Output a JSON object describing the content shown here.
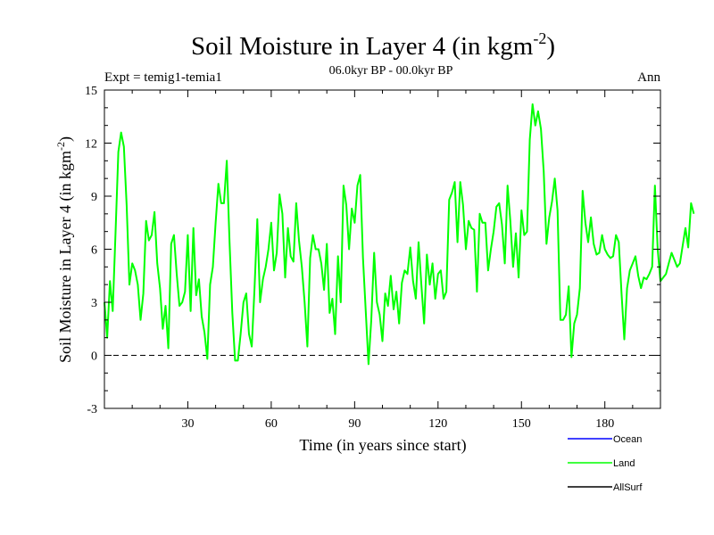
{
  "chart_data": {
    "type": "line",
    "title": "Soil Moisture in Layer 4 (in kgm",
    "title_sup": "-2",
    "title_close": ")",
    "subtitle": "06.0kyr BP - 00.0kyr BP",
    "expt_label": "Expt = temig1-temia1",
    "season_label": "Ann",
    "xlabel": "Time (in years since start)",
    "ylabel": "Soil Moisture in Layer 4 (in kgm",
    "ylabel_sup": "-2",
    "ylabel_close": ")",
    "xlim": [
      0,
      200
    ],
    "ylim": [
      -3,
      15
    ],
    "x_ticks": [
      30,
      60,
      90,
      120,
      150,
      180
    ],
    "y_ticks": [
      -3,
      0,
      3,
      6,
      9,
      12,
      15
    ],
    "reference_line": 0,
    "legend": [
      {
        "name": "Ocean",
        "color": "#0000ff"
      },
      {
        "name": "Land",
        "color": "#00ff00"
      },
      {
        "name": "AllSurf",
        "color": "#000000"
      }
    ],
    "series": [
      {
        "name": "Land",
        "color": "#00ff00",
        "x_start": 0,
        "x_step": 1,
        "values": [
          3.0,
          1.0,
          4.2,
          2.5,
          7.0,
          11.5,
          12.6,
          11.8,
          8.5,
          4.0,
          5.2,
          4.8,
          4.0,
          2.0,
          3.5,
          7.6,
          6.5,
          6.8,
          8.1,
          5.2,
          3.8,
          1.5,
          2.8,
          0.4,
          6.3,
          6.8,
          4.6,
          2.8,
          3.0,
          3.6,
          6.8,
          2.5,
          7.2,
          3.4,
          4.3,
          2.2,
          1.3,
          -0.2,
          4.0,
          5.0,
          7.5,
          9.7,
          8.6,
          8.6,
          11.0,
          6.4,
          2.4,
          -0.3,
          -0.3,
          1.2,
          3.0,
          3.5,
          1.2,
          0.5,
          3.8,
          7.7,
          3.0,
          4.3,
          5.0,
          6.0,
          7.5,
          4.8,
          5.8,
          9.1,
          8.0,
          4.4,
          7.2,
          5.6,
          5.3,
          8.6,
          6.5,
          5.0,
          3.0,
          0.5,
          5.5,
          6.8,
          6.0,
          6.0,
          5.2,
          3.7,
          6.3,
          2.4,
          3.2,
          1.2,
          5.6,
          3.0,
          9.6,
          8.5,
          6.0,
          8.3,
          7.5,
          9.6,
          10.2,
          5.5,
          2.5,
          -0.5,
          2.0,
          5.8,
          3.0,
          2.3,
          0.8,
          3.5,
          2.8,
          4.5,
          2.6,
          3.6,
          1.8,
          4.1,
          4.8,
          4.6,
          6.1,
          4.2,
          3.2,
          6.4,
          4.0,
          1.8,
          5.7,
          4.0,
          5.2,
          3.2,
          4.6,
          4.8,
          3.2,
          3.6,
          8.8,
          9.2,
          9.8,
          6.4,
          9.8,
          8.5,
          6.0,
          7.6,
          7.2,
          7.1,
          3.6,
          8.0,
          7.5,
          7.5,
          4.8,
          6.0,
          7.0,
          8.4,
          8.6,
          7.4,
          5.2,
          9.6,
          7.6,
          5.0,
          6.9,
          4.4,
          8.2,
          6.8,
          7.0,
          12.2,
          14.2,
          13.0,
          13.8,
          12.8,
          10.4,
          6.3,
          7.8,
          8.7,
          10.0,
          8.2,
          2.0,
          2.0,
          2.3,
          3.9,
          -0.1,
          1.8,
          2.3,
          3.8,
          9.3,
          7.5,
          6.4,
          7.8,
          6.3,
          5.7,
          5.8,
          6.8,
          6.0,
          5.7,
          5.5,
          5.6,
          6.8,
          6.4,
          3.5,
          0.9,
          3.8,
          4.8,
          5.2,
          5.6,
          4.5,
          3.8,
          4.4,
          4.3,
          4.6,
          5.0,
          9.6,
          6.0,
          4.2,
          4.4,
          4.6,
          5.2,
          5.8,
          5.4,
          5.0,
          5.2,
          6.2,
          7.2,
          6.1,
          8.6,
          8.0
        ]
      }
    ]
  }
}
